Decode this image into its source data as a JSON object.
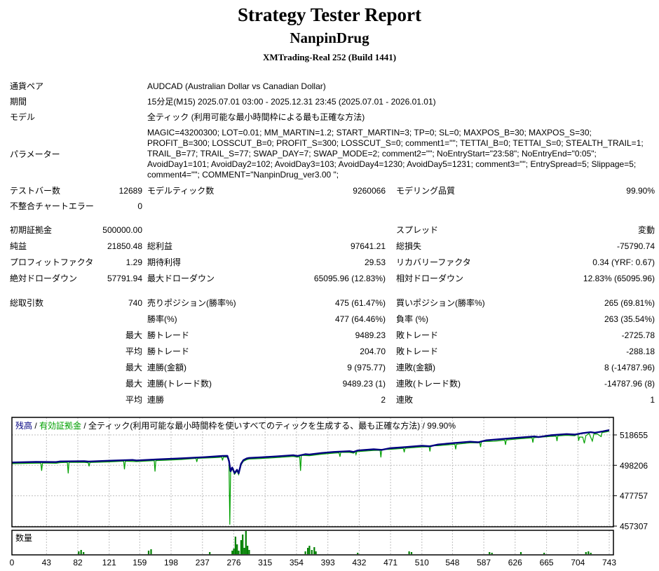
{
  "header": {
    "title": "Strategy Tester Report",
    "strategy": "NanpinDrug",
    "server": "XMTrading-Real 252 (Build 1441)"
  },
  "report": {
    "symbol": {
      "label": "通貨ペア",
      "value": "AUDCAD (Australian Dollar vs Canadian Dollar)"
    },
    "period": {
      "label": "期間",
      "value": "15分足(M15) 2025.07.01 03:00 - 2025.12.31 23:45 (2025.07.01 - 2026.01.01)"
    },
    "model": {
      "label": "モデル",
      "value": "全ティック (利用可能な最小時間枠による最も正確な方法)"
    },
    "params": {
      "label": "パラメーター",
      "value": "MAGIC=43200300; LOT=0.01; MM_MARTIN=1.2; START_MARTIN=3; TP=0; SL=0; MAXPOS_B=30; MAXPOS_S=30; PROFIT_B=300; LOSSCUT_B=0; PROFIT_S=300; LOSSCUT_S=0; comment1=\"\"; TETTAI_B=0; TETTAI_S=0; STEALTH_TRAIL=1; TRAIL_B=77; TRAIL_S=77; SWAP_DAY=7; SWAP_MODE=2; comment2=\"\"; NoEntryStart=\"23:58\"; NoEntryEnd=\"0:05\"; AvoidDay1=101; AvoidDay2=102; AvoidDay3=103; AvoidDay4=1230; AvoidDay5=1231; comment3=\"\"; EntrySpread=5; Slippage=5; comment4=\"\"; COMMENT=\"NanpinDrug_ver3.00 \";"
    },
    "bars": {
      "l1": "テストバー数",
      "v1": "12689",
      "l2": "モデルティック数",
      "v2": "9260066",
      "l3": "モデリング品質",
      "v3": "99.90%"
    },
    "mismatch": {
      "l1": "不整合チャートエラー",
      "v1": "0"
    },
    "deposit": {
      "l1": "初期証拠金",
      "v1": "500000.00",
      "l3": "スプレッド",
      "v3": "変動"
    },
    "net": {
      "l1": "純益",
      "v1": "21850.48",
      "l2": "総利益",
      "v2": "97641.21",
      "l3": "総損失",
      "v3": "-75790.74"
    },
    "pf": {
      "l1": "プロフィットファクタ",
      "v1": "1.29",
      "l2": "期待利得",
      "v2": "29.53",
      "l3": "リカバリーファクタ",
      "v3": "0.34 (YRF: 0.67)"
    },
    "absdd": {
      "l1": "絶対ドローダウン",
      "v1": "57791.94",
      "l2": "最大ドローダウン",
      "v2": "65095.96 (12.83%)",
      "l3": "相対ドローダウン",
      "v3": "12.83% (65095.96)"
    },
    "trades": {
      "l1": "総取引数",
      "v1": "740",
      "l2": "売りポジション(勝率%)",
      "v2": "475 (61.47%)",
      "l3": "買いポジション(勝率%)",
      "v3": "265 (69.81%)"
    },
    "winrate": {
      "l2": "勝率(%)",
      "v2": "477 (64.46%)",
      "l3": "負率 (%)",
      "v3": "263 (35.54%)"
    },
    "maxt": {
      "q": "最大",
      "l2": "勝トレード",
      "v2": "9489.23",
      "l3": "敗トレード",
      "v3": "-2725.78"
    },
    "avgt": {
      "q": "平均",
      "l2": "勝トレード",
      "v2": "204.70",
      "l3": "敗トレード",
      "v3": "-288.18"
    },
    "maxca": {
      "q": "最大",
      "l2": "連勝(金額)",
      "v2": "9 (975.77)",
      "l3": "連敗(金額)",
      "v3": "8 (-14787.96)"
    },
    "maxcc": {
      "q": "最大",
      "l2": "連勝(トレード数)",
      "v2": "9489.23 (1)",
      "l3": "連敗(トレード数)",
      "v3": "-14787.96 (8)"
    },
    "avgc": {
      "q": "平均",
      "l2": "連勝",
      "v2": "2",
      "l3": "連敗",
      "v3": "1"
    }
  },
  "chart_data": {
    "type": "line",
    "legend": [
      {
        "text": "残高",
        "color": "#000080"
      },
      {
        "text": " / ",
        "color": "#000000"
      },
      {
        "text": "有効証拠金",
        "color": "#00A000"
      },
      {
        "text": " / 全ティック(利用可能な最小時間枠を使いすべてのティックを生成する、最も正確な方法) / 99.90%",
        "color": "#000000"
      }
    ],
    "ylabel": "",
    "xlabel": "",
    "y_ticks": [
      518655,
      498206,
      477757,
      457307
    ],
    "x_ticks": [
      0,
      43,
      82,
      121,
      159,
      198,
      237,
      276,
      315,
      354,
      393,
      432,
      471,
      510,
      548,
      587,
      626,
      665,
      704,
      743
    ],
    "initial_deposit": 500000,
    "final_balance": 521850.48,
    "series": [
      {
        "name": "残高",
        "color": "#000080",
        "points": [
          [
            0,
            500100
          ],
          [
            30,
            500500
          ],
          [
            55,
            500400
          ],
          [
            60,
            500800
          ],
          [
            90,
            501000
          ],
          [
            95,
            500700
          ],
          [
            120,
            501300
          ],
          [
            150,
            501800
          ],
          [
            155,
            501500
          ],
          [
            180,
            502200
          ],
          [
            210,
            502900
          ],
          [
            240,
            503700
          ],
          [
            262,
            504500
          ],
          [
            268,
            504600
          ],
          [
            270,
            501200
          ],
          [
            272,
            494200
          ],
          [
            274,
            496700
          ],
          [
            277,
            493000
          ],
          [
            280,
            495200
          ],
          [
            282,
            492800
          ],
          [
            285,
            499200
          ],
          [
            288,
            501700
          ],
          [
            292,
            502800
          ],
          [
            295,
            503200
          ],
          [
            310,
            503600
          ],
          [
            330,
            504200
          ],
          [
            350,
            505000
          ],
          [
            355,
            504500
          ],
          [
            365,
            505700
          ],
          [
            370,
            505500
          ],
          [
            385,
            506500
          ],
          [
            400,
            507200
          ],
          [
            420,
            507700
          ],
          [
            425,
            507200
          ],
          [
            430,
            508200
          ],
          [
            450,
            509000
          ],
          [
            460,
            508600
          ],
          [
            470,
            509700
          ],
          [
            490,
            510500
          ],
          [
            510,
            511400
          ],
          [
            520,
            511000
          ],
          [
            530,
            512200
          ],
          [
            550,
            513200
          ],
          [
            570,
            514100
          ],
          [
            580,
            513700
          ],
          [
            590,
            515000
          ],
          [
            610,
            515900
          ],
          [
            630,
            516800
          ],
          [
            650,
            517600
          ],
          [
            655,
            517200
          ],
          [
            670,
            518400
          ],
          [
            690,
            519200
          ],
          [
            700,
            518900
          ],
          [
            710,
            519900
          ],
          [
            720,
            520500
          ],
          [
            725,
            520100
          ],
          [
            735,
            521000
          ],
          [
            740,
            521600
          ],
          [
            743,
            521850
          ]
        ]
      },
      {
        "name": "有効証拠金",
        "color": "#00A000",
        "points": [
          [
            0,
            499300
          ],
          [
            25,
            499600
          ],
          [
            36,
            499700
          ],
          [
            37,
            494500
          ],
          [
            38,
            499800
          ],
          [
            55,
            499600
          ],
          [
            60,
            500000
          ],
          [
            69,
            500200
          ],
          [
            70,
            492800
          ],
          [
            71,
            500200
          ],
          [
            90,
            500200
          ],
          [
            95,
            499900
          ],
          [
            96,
            497500
          ],
          [
            97,
            500100
          ],
          [
            120,
            500500
          ],
          [
            139,
            501000
          ],
          [
            140,
            495500
          ],
          [
            141,
            501000
          ],
          [
            155,
            500700
          ],
          [
            177,
            501400
          ],
          [
            178,
            494000
          ],
          [
            179,
            501400
          ],
          [
            210,
            502100
          ],
          [
            229,
            502900
          ],
          [
            230,
            500500
          ],
          [
            231,
            502900
          ],
          [
            255,
            503400
          ],
          [
            261,
            503700
          ],
          [
            262,
            501500
          ],
          [
            263,
            503700
          ],
          [
            268,
            503800
          ],
          [
            270,
            500400
          ],
          [
            271,
            458300
          ],
          [
            272,
            493400
          ],
          [
            274,
            495900
          ],
          [
            277,
            492200
          ],
          [
            280,
            494400
          ],
          [
            282,
            492000
          ],
          [
            285,
            498400
          ],
          [
            288,
            500900
          ],
          [
            292,
            502000
          ],
          [
            295,
            502400
          ],
          [
            310,
            502800
          ],
          [
            330,
            503400
          ],
          [
            350,
            504200
          ],
          [
            355,
            503700
          ],
          [
            358,
            503900
          ],
          [
            359,
            494500
          ],
          [
            360,
            504900
          ],
          [
            370,
            504700
          ],
          [
            385,
            505700
          ],
          [
            400,
            506400
          ],
          [
            407,
            506600
          ],
          [
            408,
            504000
          ],
          [
            409,
            506900
          ],
          [
            420,
            506900
          ],
          [
            425,
            506400
          ],
          [
            427,
            507400
          ],
          [
            428,
            505500
          ],
          [
            429,
            507400
          ],
          [
            450,
            508200
          ],
          [
            458,
            508300
          ],
          [
            459,
            503500
          ],
          [
            460,
            508900
          ],
          [
            470,
            508900
          ],
          [
            487,
            509600
          ],
          [
            488,
            507000
          ],
          [
            489,
            509700
          ],
          [
            510,
            510600
          ],
          [
            519,
            510700
          ],
          [
            520,
            507500
          ],
          [
            521,
            511400
          ],
          [
            530,
            511400
          ],
          [
            551,
            512400
          ],
          [
            552,
            509000
          ],
          [
            553,
            512400
          ],
          [
            570,
            513300
          ],
          [
            582,
            513400
          ],
          [
            583,
            510500
          ],
          [
            584,
            514200
          ],
          [
            600,
            514400
          ],
          [
            613,
            515100
          ],
          [
            614,
            512000
          ],
          [
            615,
            515200
          ],
          [
            630,
            516000
          ],
          [
            647,
            516700
          ],
          [
            648,
            513500
          ],
          [
            649,
            516800
          ],
          [
            670,
            517600
          ],
          [
            677,
            517800
          ],
          [
            678,
            514500
          ],
          [
            679,
            518000
          ],
          [
            690,
            518400
          ],
          [
            700,
            518100
          ],
          [
            704,
            519100
          ],
          [
            705,
            514800
          ],
          [
            706,
            517200
          ],
          [
            710,
            517200
          ],
          [
            712,
            513000
          ],
          [
            714,
            518200
          ],
          [
            718,
            519600
          ],
          [
            722,
            514500
          ],
          [
            724,
            519300
          ],
          [
            728,
            519300
          ],
          [
            733,
            517500
          ],
          [
            734,
            520200
          ],
          [
            740,
            520800
          ],
          [
            743,
            521200
          ]
        ]
      }
    ],
    "volume": {
      "label": "数量",
      "color": "#008000",
      "bars": [
        [
          83,
          4
        ],
        [
          86,
          6
        ],
        [
          89,
          3
        ],
        [
          170,
          5
        ],
        [
          173,
          7
        ],
        [
          246,
          3
        ],
        [
          274,
          5
        ],
        [
          276,
          8
        ],
        [
          278,
          25
        ],
        [
          280,
          14
        ],
        [
          282,
          5
        ],
        [
          285,
          20
        ],
        [
          287,
          28
        ],
        [
          289,
          9
        ],
        [
          291,
          33
        ],
        [
          293,
          12
        ],
        [
          295,
          6
        ],
        [
          365,
          4
        ],
        [
          368,
          9
        ],
        [
          370,
          12
        ],
        [
          373,
          6
        ],
        [
          376,
          10
        ],
        [
          378,
          4
        ],
        [
          430,
          2
        ],
        [
          494,
          4
        ],
        [
          497,
          3
        ],
        [
          594,
          3
        ],
        [
          597,
          2
        ],
        [
          633,
          3
        ],
        [
          662,
          2
        ],
        [
          714,
          3
        ],
        [
          717,
          4
        ],
        [
          720,
          2
        ]
      ]
    }
  }
}
